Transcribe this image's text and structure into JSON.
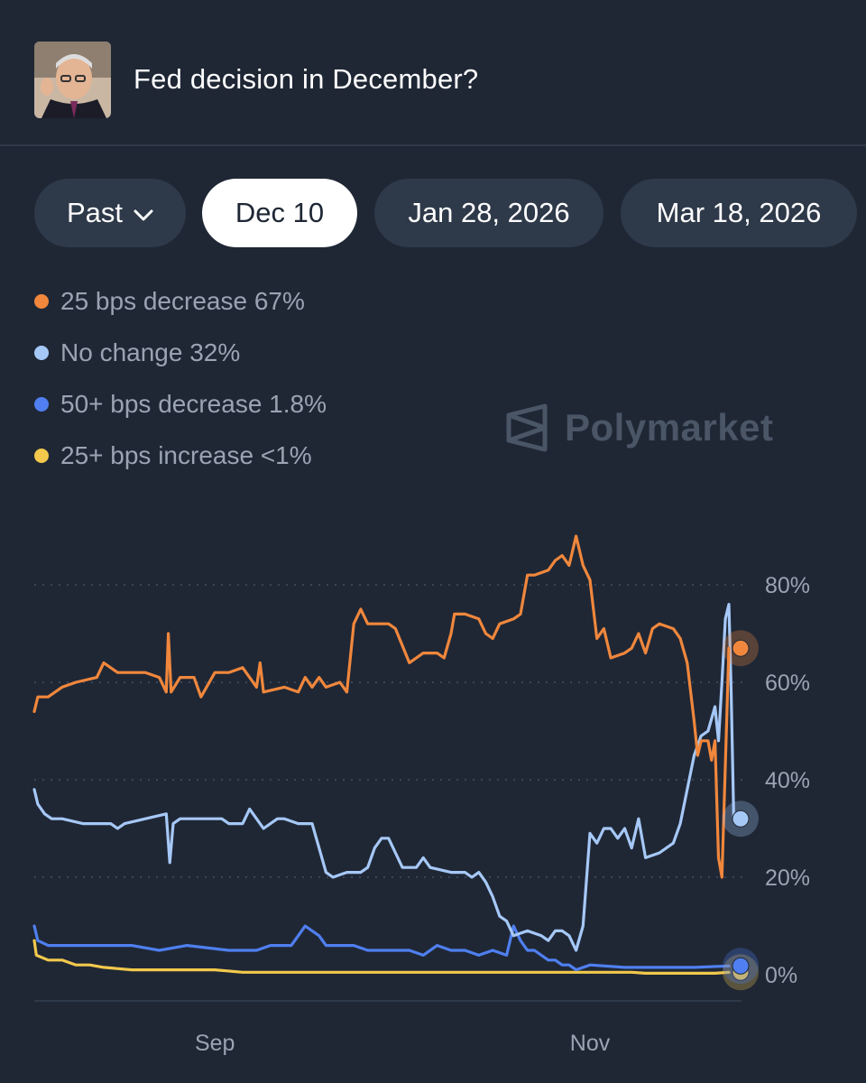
{
  "header": {
    "title": "Fed decision in December?"
  },
  "tabs": [
    {
      "label": "Past",
      "active": false,
      "has_chevron": true
    },
    {
      "label": "Dec 10",
      "active": true
    },
    {
      "label": "Jan 28, 2026",
      "active": false
    },
    {
      "label": "Mar 18, 2026",
      "active": false
    }
  ],
  "legend": [
    {
      "label": "25 bps decrease 67%",
      "color": "#f0873c"
    },
    {
      "label": "No change 32%",
      "color": "#a6c8f7"
    },
    {
      "label": "50+ bps decrease 1.8%",
      "color": "#4f7ff0"
    },
    {
      "label": "25+ bps increase <1%",
      "color": "#f2c94c"
    }
  ],
  "watermark": {
    "text": "Polymarket"
  },
  "chart_data": {
    "type": "line",
    "title": "Fed decision in December?",
    "x_range": [
      0,
      100
    ],
    "x_ticks": [
      {
        "x": 26,
        "label": "Sep"
      },
      {
        "x": 80,
        "label": "Nov"
      }
    ],
    "ylim": [
      0,
      100
    ],
    "y_ticks": [
      0,
      20,
      40,
      60,
      80
    ],
    "y_tick_labels": [
      "0%",
      "20%",
      "40%",
      "60%",
      "80%"
    ],
    "grid": true,
    "series": [
      {
        "name": "25 bps decrease",
        "color": "#f0873c",
        "last": 67,
        "points": [
          [
            0,
            54
          ],
          [
            0.5,
            57
          ],
          [
            2,
            57
          ],
          [
            4,
            59
          ],
          [
            6,
            60
          ],
          [
            9,
            61
          ],
          [
            10,
            64
          ],
          [
            12,
            62
          ],
          [
            16,
            62
          ],
          [
            18,
            61
          ],
          [
            19,
            58
          ],
          [
            19.3,
            70
          ],
          [
            19.7,
            58
          ],
          [
            21,
            61
          ],
          [
            23,
            61
          ],
          [
            24,
            57
          ],
          [
            26,
            62
          ],
          [
            28,
            62
          ],
          [
            30,
            63
          ],
          [
            31,
            61
          ],
          [
            32,
            59
          ],
          [
            32.5,
            64
          ],
          [
            33,
            58
          ],
          [
            36,
            59
          ],
          [
            38,
            58
          ],
          [
            39,
            61
          ],
          [
            40,
            59
          ],
          [
            41,
            61
          ],
          [
            42,
            59
          ],
          [
            44,
            60
          ],
          [
            45,
            58
          ],
          [
            46,
            72
          ],
          [
            47,
            75
          ],
          [
            48,
            72
          ],
          [
            51,
            72
          ],
          [
            52,
            71
          ],
          [
            54,
            64
          ],
          [
            56,
            66
          ],
          [
            58,
            66
          ],
          [
            59,
            65
          ],
          [
            60,
            70
          ],
          [
            60.5,
            74
          ],
          [
            62,
            74
          ],
          [
            64,
            73
          ],
          [
            65,
            70
          ],
          [
            66,
            69
          ],
          [
            67,
            72
          ],
          [
            69,
            73
          ],
          [
            70,
            74
          ],
          [
            71,
            82
          ],
          [
            72,
            82
          ],
          [
            74,
            83
          ],
          [
            75,
            85
          ],
          [
            76,
            86
          ],
          [
            77,
            84
          ],
          [
            78,
            90
          ],
          [
            79,
            84
          ],
          [
            80,
            81
          ],
          [
            81,
            69
          ],
          [
            82,
            71
          ],
          [
            83,
            65
          ],
          [
            85,
            66
          ],
          [
            86,
            67
          ],
          [
            87,
            70
          ],
          [
            88,
            66
          ],
          [
            89,
            71
          ],
          [
            90,
            72
          ],
          [
            92,
            71
          ],
          [
            93,
            69
          ],
          [
            94,
            64
          ],
          [
            95,
            52
          ],
          [
            95.5,
            45
          ],
          [
            96,
            48
          ],
          [
            97,
            48
          ],
          [
            97.5,
            44
          ],
          [
            98,
            48
          ],
          [
            98.5,
            24
          ],
          [
            99,
            20
          ],
          [
            100,
            67
          ]
        ]
      },
      {
        "name": "No change",
        "color": "#a6c8f7",
        "last": 32,
        "points": [
          [
            0,
            38
          ],
          [
            0.5,
            35
          ],
          [
            1.5,
            33
          ],
          [
            2.5,
            32
          ],
          [
            4,
            32
          ],
          [
            7,
            31
          ],
          [
            11,
            31
          ],
          [
            12,
            30
          ],
          [
            13,
            31
          ],
          [
            16,
            32
          ],
          [
            19,
            33
          ],
          [
            19.5,
            23
          ],
          [
            20,
            31
          ],
          [
            21,
            32
          ],
          [
            22,
            32
          ],
          [
            25,
            32
          ],
          [
            27,
            32
          ],
          [
            28,
            31
          ],
          [
            30,
            31
          ],
          [
            31,
            34
          ],
          [
            32,
            32
          ],
          [
            33,
            30
          ],
          [
            35,
            32
          ],
          [
            36,
            32
          ],
          [
            38,
            31
          ],
          [
            40,
            31
          ],
          [
            41,
            26
          ],
          [
            42,
            21
          ],
          [
            43,
            20
          ],
          [
            45,
            21
          ],
          [
            47,
            21
          ],
          [
            48,
            22
          ],
          [
            49,
            26
          ],
          [
            50,
            28
          ],
          [
            51,
            28
          ],
          [
            52,
            25
          ],
          [
            53,
            22
          ],
          [
            55,
            22
          ],
          [
            56,
            24
          ],
          [
            57,
            22
          ],
          [
            60,
            21
          ],
          [
            62,
            21
          ],
          [
            63,
            20
          ],
          [
            64,
            21
          ],
          [
            65,
            19
          ],
          [
            66,
            16
          ],
          [
            67,
            12
          ],
          [
            68,
            11
          ],
          [
            69,
            8
          ],
          [
            71,
            9
          ],
          [
            73,
            8
          ],
          [
            74,
            7
          ],
          [
            75,
            9
          ],
          [
            76,
            9
          ],
          [
            77,
            8
          ],
          [
            78,
            5
          ],
          [
            79,
            10
          ],
          [
            80,
            29
          ],
          [
            81,
            27
          ],
          [
            82,
            30
          ],
          [
            83,
            30
          ],
          [
            84,
            28
          ],
          [
            85,
            30
          ],
          [
            86,
            26
          ],
          [
            87,
            32
          ],
          [
            88,
            24
          ],
          [
            90,
            25
          ],
          [
            91,
            26
          ],
          [
            92,
            27
          ],
          [
            93,
            31
          ],
          [
            94,
            38
          ],
          [
            95,
            45
          ],
          [
            96,
            49
          ],
          [
            97,
            50
          ],
          [
            98,
            55
          ],
          [
            98.5,
            48
          ],
          [
            99,
            60
          ],
          [
            99.5,
            73
          ],
          [
            100,
            76
          ],
          [
            100.3,
            60
          ],
          [
            100.7,
            32
          ],
          [
            101,
            33
          ],
          [
            101.5,
            32
          ]
        ]
      },
      {
        "name": "50+ bps decrease",
        "color": "#4f7ff0",
        "last": 1.8,
        "points": [
          [
            0,
            10
          ],
          [
            0.5,
            7
          ],
          [
            2,
            6
          ],
          [
            6,
            6
          ],
          [
            10,
            6
          ],
          [
            14,
            6
          ],
          [
            18,
            5
          ],
          [
            22,
            6
          ],
          [
            28,
            5
          ],
          [
            32,
            5
          ],
          [
            34,
            6
          ],
          [
            37,
            6
          ],
          [
            38,
            8
          ],
          [
            39,
            10
          ],
          [
            40,
            9
          ],
          [
            41,
            8
          ],
          [
            42,
            6
          ],
          [
            44,
            6
          ],
          [
            46,
            6
          ],
          [
            48,
            5
          ],
          [
            50,
            5
          ],
          [
            52,
            5
          ],
          [
            54,
            5
          ],
          [
            56,
            4
          ],
          [
            58,
            6
          ],
          [
            60,
            5
          ],
          [
            62,
            5
          ],
          [
            64,
            4
          ],
          [
            66,
            5
          ],
          [
            68,
            4
          ],
          [
            69,
            10
          ],
          [
            70,
            7
          ],
          [
            71,
            5
          ],
          [
            72,
            5
          ],
          [
            74,
            3
          ],
          [
            75,
            3
          ],
          [
            76,
            2
          ],
          [
            77,
            2
          ],
          [
            78,
            1
          ],
          [
            80,
            2
          ],
          [
            85,
            1.5
          ],
          [
            90,
            1.5
          ],
          [
            95,
            1.5
          ],
          [
            100,
            1.8
          ]
        ]
      },
      {
        "name": "25+ bps increase",
        "color": "#f2c94c",
        "last": 0.5,
        "points": [
          [
            0,
            7
          ],
          [
            0.3,
            4
          ],
          [
            2,
            3
          ],
          [
            4,
            3
          ],
          [
            6,
            2
          ],
          [
            8,
            2
          ],
          [
            10,
            1.5
          ],
          [
            14,
            1
          ],
          [
            18,
            1
          ],
          [
            22,
            1
          ],
          [
            26,
            1
          ],
          [
            30,
            0.5
          ],
          [
            34,
            0.5
          ],
          [
            38,
            0.5
          ],
          [
            42,
            0.5
          ],
          [
            46,
            0.5
          ],
          [
            50,
            0.5
          ],
          [
            54,
            0.5
          ],
          [
            58,
            0.5
          ],
          [
            62,
            0.5
          ],
          [
            66,
            0.5
          ],
          [
            70,
            0.5
          ],
          [
            74,
            0.5
          ],
          [
            78,
            0.5
          ],
          [
            82,
            0.5
          ],
          [
            86,
            0.5
          ],
          [
            88,
            0.3
          ],
          [
            90,
            0.3
          ],
          [
            94,
            0.3
          ],
          [
            98,
            0.3
          ],
          [
            100,
            0.5
          ]
        ]
      }
    ]
  }
}
